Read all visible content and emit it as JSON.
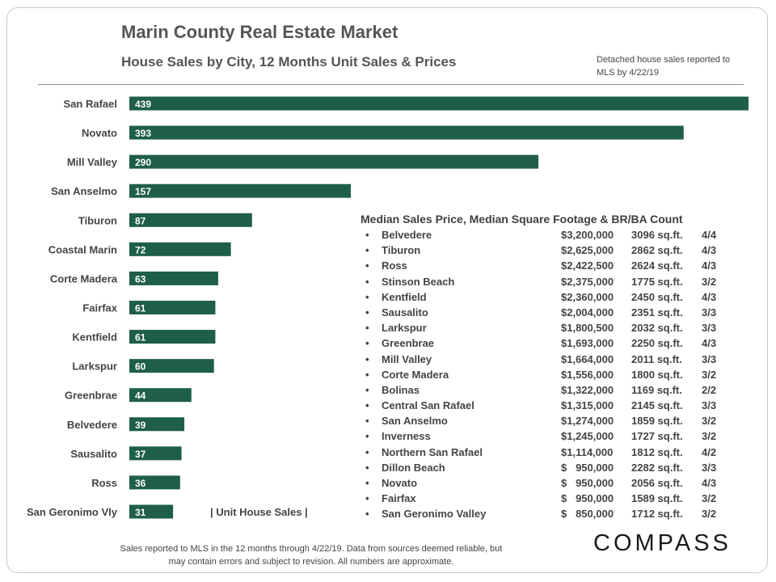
{
  "header": {
    "title": "Marin County Real Estate Market",
    "subtitle": "House Sales by City, 12 Months Unit Sales & Prices",
    "note": "Detached house sales reported to MLS by 4/22/19"
  },
  "colors": {
    "bar": "#1e5e4b",
    "text": "#444444"
  },
  "chart_data": {
    "type": "bar",
    "orientation": "horizontal",
    "categories": [
      "San Rafael",
      "Novato",
      "Mill Valley",
      "San Anselmo",
      "Tiburon",
      "Coastal Marin",
      "Corte Madera",
      "Fairfax",
      "Kentfield",
      "Larkspur",
      "Greenbrae",
      "Belvedere",
      "Sausalito",
      "Ross",
      "San Geronimo Vly"
    ],
    "values": [
      439,
      393,
      290,
      157,
      87,
      72,
      63,
      61,
      61,
      60,
      44,
      39,
      37,
      36,
      31
    ],
    "legend": "| Unit House Sales |",
    "legend_position": "bottom"
  },
  "median_table": {
    "title": "Median Sales Price, Median Square Footage & BR/BA Count",
    "bullet": "•",
    "rows": [
      {
        "city": "Belvedere",
        "price": "$3,200,000",
        "sqft": "3096 sq.ft.",
        "brba": "4/4"
      },
      {
        "city": "Tiburon",
        "price": "$2,625,000",
        "sqft": "2862 sq.ft.",
        "brba": "4/3"
      },
      {
        "city": "Ross",
        "price": "$2,422,500",
        "sqft": "2624 sq.ft.",
        "brba": "4/3"
      },
      {
        "city": "Stinson Beach",
        "price": "$2,375,000",
        "sqft": "1775 sq.ft.",
        "brba": "3/2"
      },
      {
        "city": "Kentfield",
        "price": "$2,360,000",
        "sqft": "2450 sq.ft.",
        "brba": "4/3"
      },
      {
        "city": "Sausalito",
        "price": "$2,004,000",
        "sqft": "2351 sq.ft.",
        "brba": "3/3"
      },
      {
        "city": "Larkspur",
        "price": "$1,800,500",
        "sqft": "2032 sq.ft.",
        "brba": "3/3"
      },
      {
        "city": "Greenbrae",
        "price": "$1,693,000",
        "sqft": "2250 sq.ft.",
        "brba": "4/3"
      },
      {
        "city": "Mill Valley",
        "price": "$1,664,000",
        "sqft": "2011 sq.ft.",
        "brba": "3/3"
      },
      {
        "city": "Corte Madera",
        "price": "$1,556,000",
        "sqft": "1800 sq.ft.",
        "brba": "3/2"
      },
      {
        "city": "Bolinas",
        "price": "$1,322,000",
        "sqft": "1169 sq.ft.",
        "brba": "2/2"
      },
      {
        "city": "Central San Rafael",
        "price": "$1,315,000",
        "sqft": "2145 sq.ft.",
        "brba": "3/3"
      },
      {
        "city": "San Anselmo",
        "price": "$1,274,000",
        "sqft": "1859 sq.ft.",
        "brba": "3/2"
      },
      {
        "city": "Inverness",
        "price": "$1,245,000",
        "sqft": "1727 sq.ft.",
        "brba": "3/2"
      },
      {
        "city": "Northern San Rafael",
        "price": "$1,114,000",
        "sqft": "1812 sq.ft.",
        "brba": "4/2"
      },
      {
        "city": "Dillon Beach",
        "price": "$   950,000",
        "sqft": "2282 sq.ft.",
        "brba": "3/3"
      },
      {
        "city": "Novato",
        "price": "$   950,000",
        "sqft": "2056 sq.ft.",
        "brba": "4/3"
      },
      {
        "city": "Fairfax",
        "price": "$   950,000",
        "sqft": "1589 sq.ft.",
        "brba": "3/2"
      },
      {
        "city": "San Geronimo Valley",
        "price": "$   850,000",
        "sqft": "1712 sq.ft.",
        "brba": "3/2"
      }
    ]
  },
  "footer": {
    "line1": "Sales reported to MLS in the 12 months through 4/22/19. Data from sources deemed reliable, but",
    "line2": "may contain errors and subject to revision. All numbers are approximate."
  },
  "logo": {
    "text": "COMPASS"
  }
}
